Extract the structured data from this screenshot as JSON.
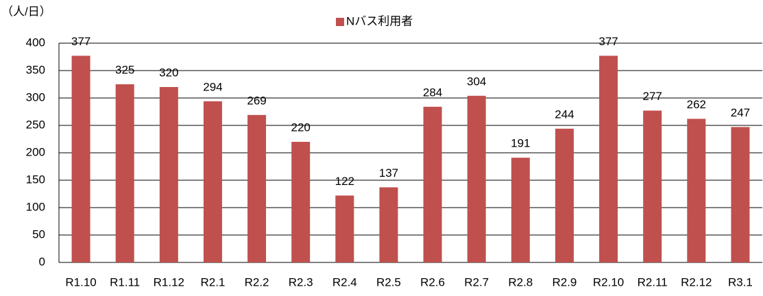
{
  "chart_data": {
    "type": "bar",
    "y_unit_label": "（人/日）",
    "categories": [
      "R1.10",
      "R1.11",
      "R1.12",
      "R2.1",
      "R2.2",
      "R2.3",
      "R2.4",
      "R2.5",
      "R2.6",
      "R2.7",
      "R2.8",
      "R2.9",
      "R2.10",
      "R2.11",
      "R2.12",
      "R3.1"
    ],
    "series": [
      {
        "name": "Nバス利用者",
        "color": "#c0504d",
        "values": [
          377,
          325,
          320,
          294,
          269,
          220,
          122,
          137,
          284,
          304,
          191,
          244,
          377,
          277,
          262,
          247
        ]
      }
    ],
    "ylim": [
      0,
      400
    ],
    "yticks": [
      0,
      50,
      100,
      150,
      200,
      250,
      300,
      350,
      400
    ],
    "grid": true,
    "legend": "top"
  }
}
